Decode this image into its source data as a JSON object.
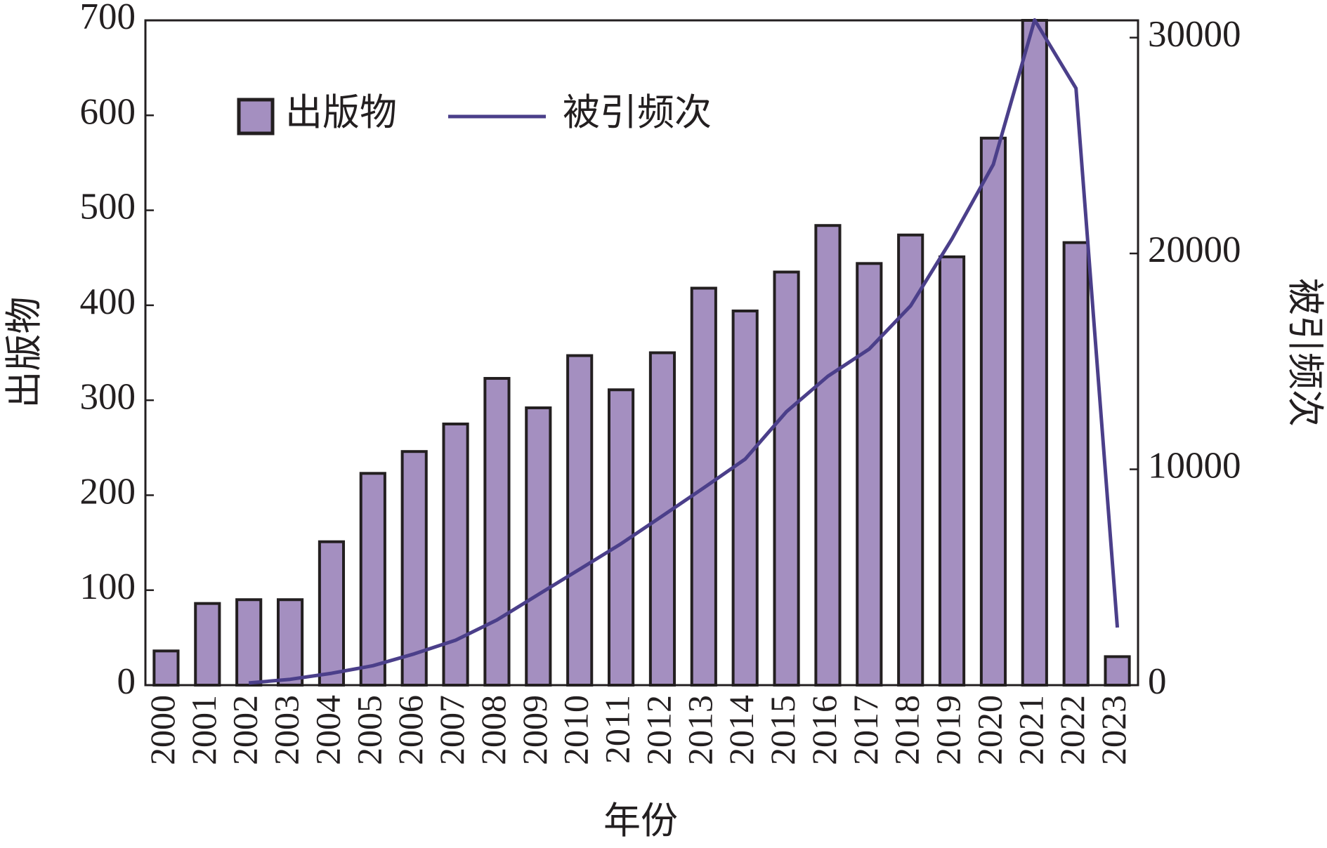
{
  "chart_data": {
    "type": "bar_line",
    "x_label": "年份",
    "y_label": "出版物",
    "y2_label": "被引频次",
    "categories": [
      "2000",
      "2001",
      "2002",
      "2003",
      "2004",
      "2005",
      "2006",
      "2007",
      "2008",
      "2009",
      "2010",
      "2011",
      "2012",
      "2013",
      "2014",
      "2015",
      "2016",
      "2017",
      "2018",
      "2019",
      "2020",
      "2021",
      "2022",
      "2023"
    ],
    "series": [
      {
        "name": "出版物",
        "type": "bar",
        "color": "#a48fc0",
        "values": [
          36,
          86,
          90,
          90,
          151,
          223,
          246,
          275,
          323,
          292,
          347,
          311,
          350,
          418,
          394,
          435,
          484,
          444,
          474,
          451,
          576,
          700,
          466,
          30
        ]
      },
      {
        "name": "被引频次",
        "type": "line",
        "axis": "y2",
        "color": "#4b3f8a",
        "values": [
          null,
          null,
          100,
          270,
          550,
          900,
          1450,
          2080,
          3020,
          4200,
          5370,
          6550,
          7840,
          9140,
          10470,
          12670,
          14310,
          15570,
          17570,
          20670,
          24120,
          30820,
          27650,
          2670
        ]
      }
    ],
    "ylim": [
      0,
      700
    ],
    "yticks": [
      0,
      100,
      200,
      300,
      400,
      500,
      600,
      700
    ],
    "y2lim": [
      0,
      30800
    ],
    "y2ticks": [
      0,
      10000,
      20000,
      30000
    ],
    "grid": false,
    "legend": "upper left"
  }
}
